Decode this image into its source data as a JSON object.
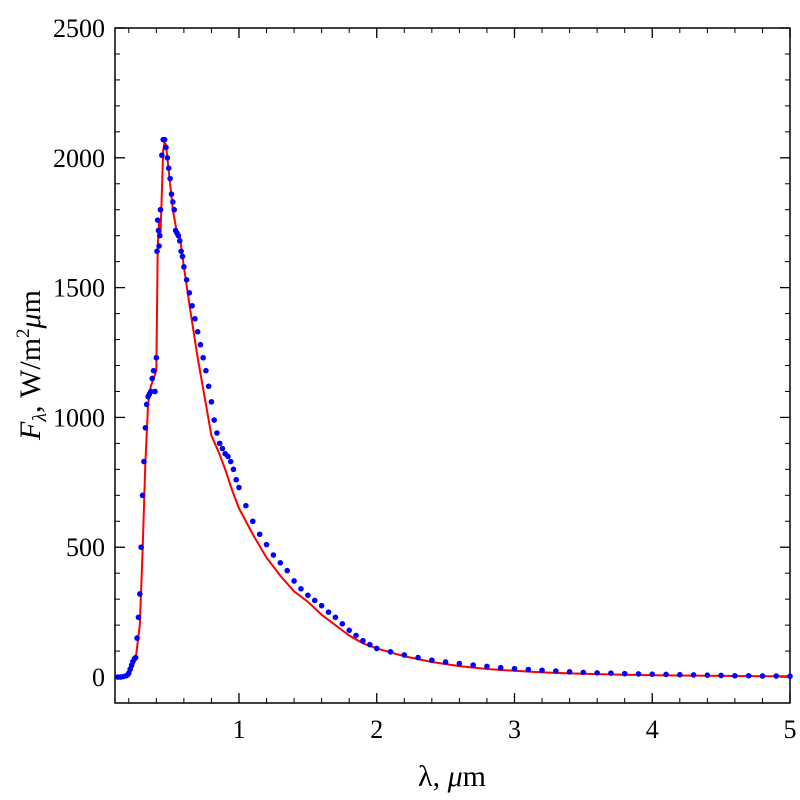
{
  "chart_data": {
    "type": "line",
    "title": "",
    "xlabel": "λ, μm",
    "ylabel": "F_λ, W/m²μm",
    "xlabel_parts": {
      "symbol": "λ",
      "sep": ", ",
      "unit_mu": "μ",
      "unit_rest": "m"
    },
    "ylabel_parts": {
      "var": "F",
      "sub": "λ",
      "sep": ", W/m",
      "sup": "2",
      "unit_mu": "μ",
      "unit_rest": "m"
    },
    "xlim": [
      0.1,
      5.0
    ],
    "ylim": [
      -100,
      2500
    ],
    "x_ticks": [
      1,
      2,
      3,
      4,
      5
    ],
    "y_ticks": [
      0,
      500,
      1000,
      1500,
      2000,
      2500
    ],
    "x_tick_labels": [
      "1",
      "2",
      "3",
      "4",
      "5"
    ],
    "y_tick_labels": [
      "0",
      "500",
      "1000",
      "1500",
      "2000",
      "2500"
    ],
    "grid": false,
    "legend": "none",
    "colors": {
      "curve": "#ff0000",
      "points": "#0000ff",
      "axes": "#000000"
    },
    "series": [
      {
        "style": "line",
        "x": [
          0.1,
          0.2,
          0.25,
          0.28,
          0.3,
          0.32,
          0.34,
          0.36,
          0.38,
          0.4,
          0.41,
          0.42,
          0.43,
          0.45,
          0.46,
          0.47,
          0.48,
          0.5,
          0.52,
          0.55,
          0.57,
          0.6,
          0.65,
          0.7,
          0.75,
          0.8,
          0.85,
          0.9,
          0.95,
          1.0,
          1.1,
          1.2,
          1.3,
          1.4,
          1.5,
          1.6,
          1.7,
          1.8,
          1.9,
          2.0,
          2.2,
          2.4,
          2.6,
          2.8,
          3.0,
          3.2,
          3.4,
          3.6,
          3.8,
          4.0,
          4.2,
          4.4,
          4.6,
          4.8,
          5.0
        ],
        "y": [
          0,
          2,
          70,
          200,
          480,
          820,
          1050,
          1120,
          1150,
          1180,
          1650,
          1760,
          1700,
          2030,
          2060,
          2050,
          2000,
          1900,
          1800,
          1710,
          1700,
          1580,
          1400,
          1230,
          1080,
          930,
          870,
          800,
          720,
          650,
          550,
          460,
          390,
          330,
          290,
          240,
          200,
          160,
          130,
          110,
          80,
          58,
          42,
          31,
          24,
          18,
          14,
          11,
          9,
          7,
          6,
          5,
          4,
          3,
          3
        ]
      },
      {
        "style": "points",
        "x": [
          0.12,
          0.14,
          0.16,
          0.18,
          0.2,
          0.21,
          0.22,
          0.23,
          0.24,
          0.25,
          0.26,
          0.27,
          0.28,
          0.29,
          0.3,
          0.31,
          0.32,
          0.33,
          0.34,
          0.35,
          0.36,
          0.37,
          0.38,
          0.39,
          0.4,
          0.405,
          0.41,
          0.415,
          0.42,
          0.425,
          0.43,
          0.44,
          0.45,
          0.46,
          0.47,
          0.48,
          0.49,
          0.5,
          0.51,
          0.52,
          0.53,
          0.54,
          0.55,
          0.56,
          0.57,
          0.58,
          0.59,
          0.6,
          0.62,
          0.64,
          0.66,
          0.68,
          0.7,
          0.72,
          0.74,
          0.76,
          0.78,
          0.8,
          0.82,
          0.84,
          0.86,
          0.88,
          0.9,
          0.92,
          0.94,
          0.96,
          0.98,
          1.0,
          1.05,
          1.1,
          1.15,
          1.2,
          1.25,
          1.3,
          1.35,
          1.4,
          1.45,
          1.5,
          1.55,
          1.6,
          1.65,
          1.7,
          1.75,
          1.8,
          1.85,
          1.9,
          1.95,
          2.0,
          2.1,
          2.2,
          2.3,
          2.4,
          2.5,
          2.6,
          2.7,
          2.8,
          2.9,
          3.0,
          3.1,
          3.2,
          3.3,
          3.4,
          3.5,
          3.6,
          3.7,
          3.8,
          3.9,
          4.0,
          4.1,
          4.2,
          4.3,
          4.4,
          4.5,
          4.6,
          4.7,
          4.8,
          4.9,
          5.0
        ],
        "y": [
          0,
          0,
          2,
          5,
          15,
          30,
          45,
          60,
          70,
          75,
          150,
          230,
          320,
          500,
          700,
          830,
          960,
          1050,
          1080,
          1090,
          1100,
          1150,
          1180,
          1100,
          1230,
          1640,
          1760,
          1720,
          1660,
          1700,
          1800,
          2010,
          2070,
          2070,
          2040,
          2000,
          1960,
          1920,
          1860,
          1830,
          1800,
          1720,
          1710,
          1700,
          1680,
          1640,
          1620,
          1580,
          1530,
          1480,
          1430,
          1380,
          1330,
          1280,
          1230,
          1180,
          1120,
          1060,
          990,
          940,
          900,
          880,
          860,
          850,
          830,
          800,
          760,
          730,
          660,
          600,
          550,
          510,
          470,
          440,
          410,
          370,
          340,
          315,
          295,
          275,
          250,
          230,
          205,
          180,
          160,
          140,
          125,
          110,
          97,
          85,
          75,
          65,
          58,
          52,
          46,
          41,
          36,
          32,
          29,
          26,
          23,
          20,
          18,
          16,
          15,
          13,
          12,
          11,
          10,
          9,
          8,
          7,
          6,
          5,
          5,
          4,
          4,
          3
        ]
      }
    ]
  }
}
